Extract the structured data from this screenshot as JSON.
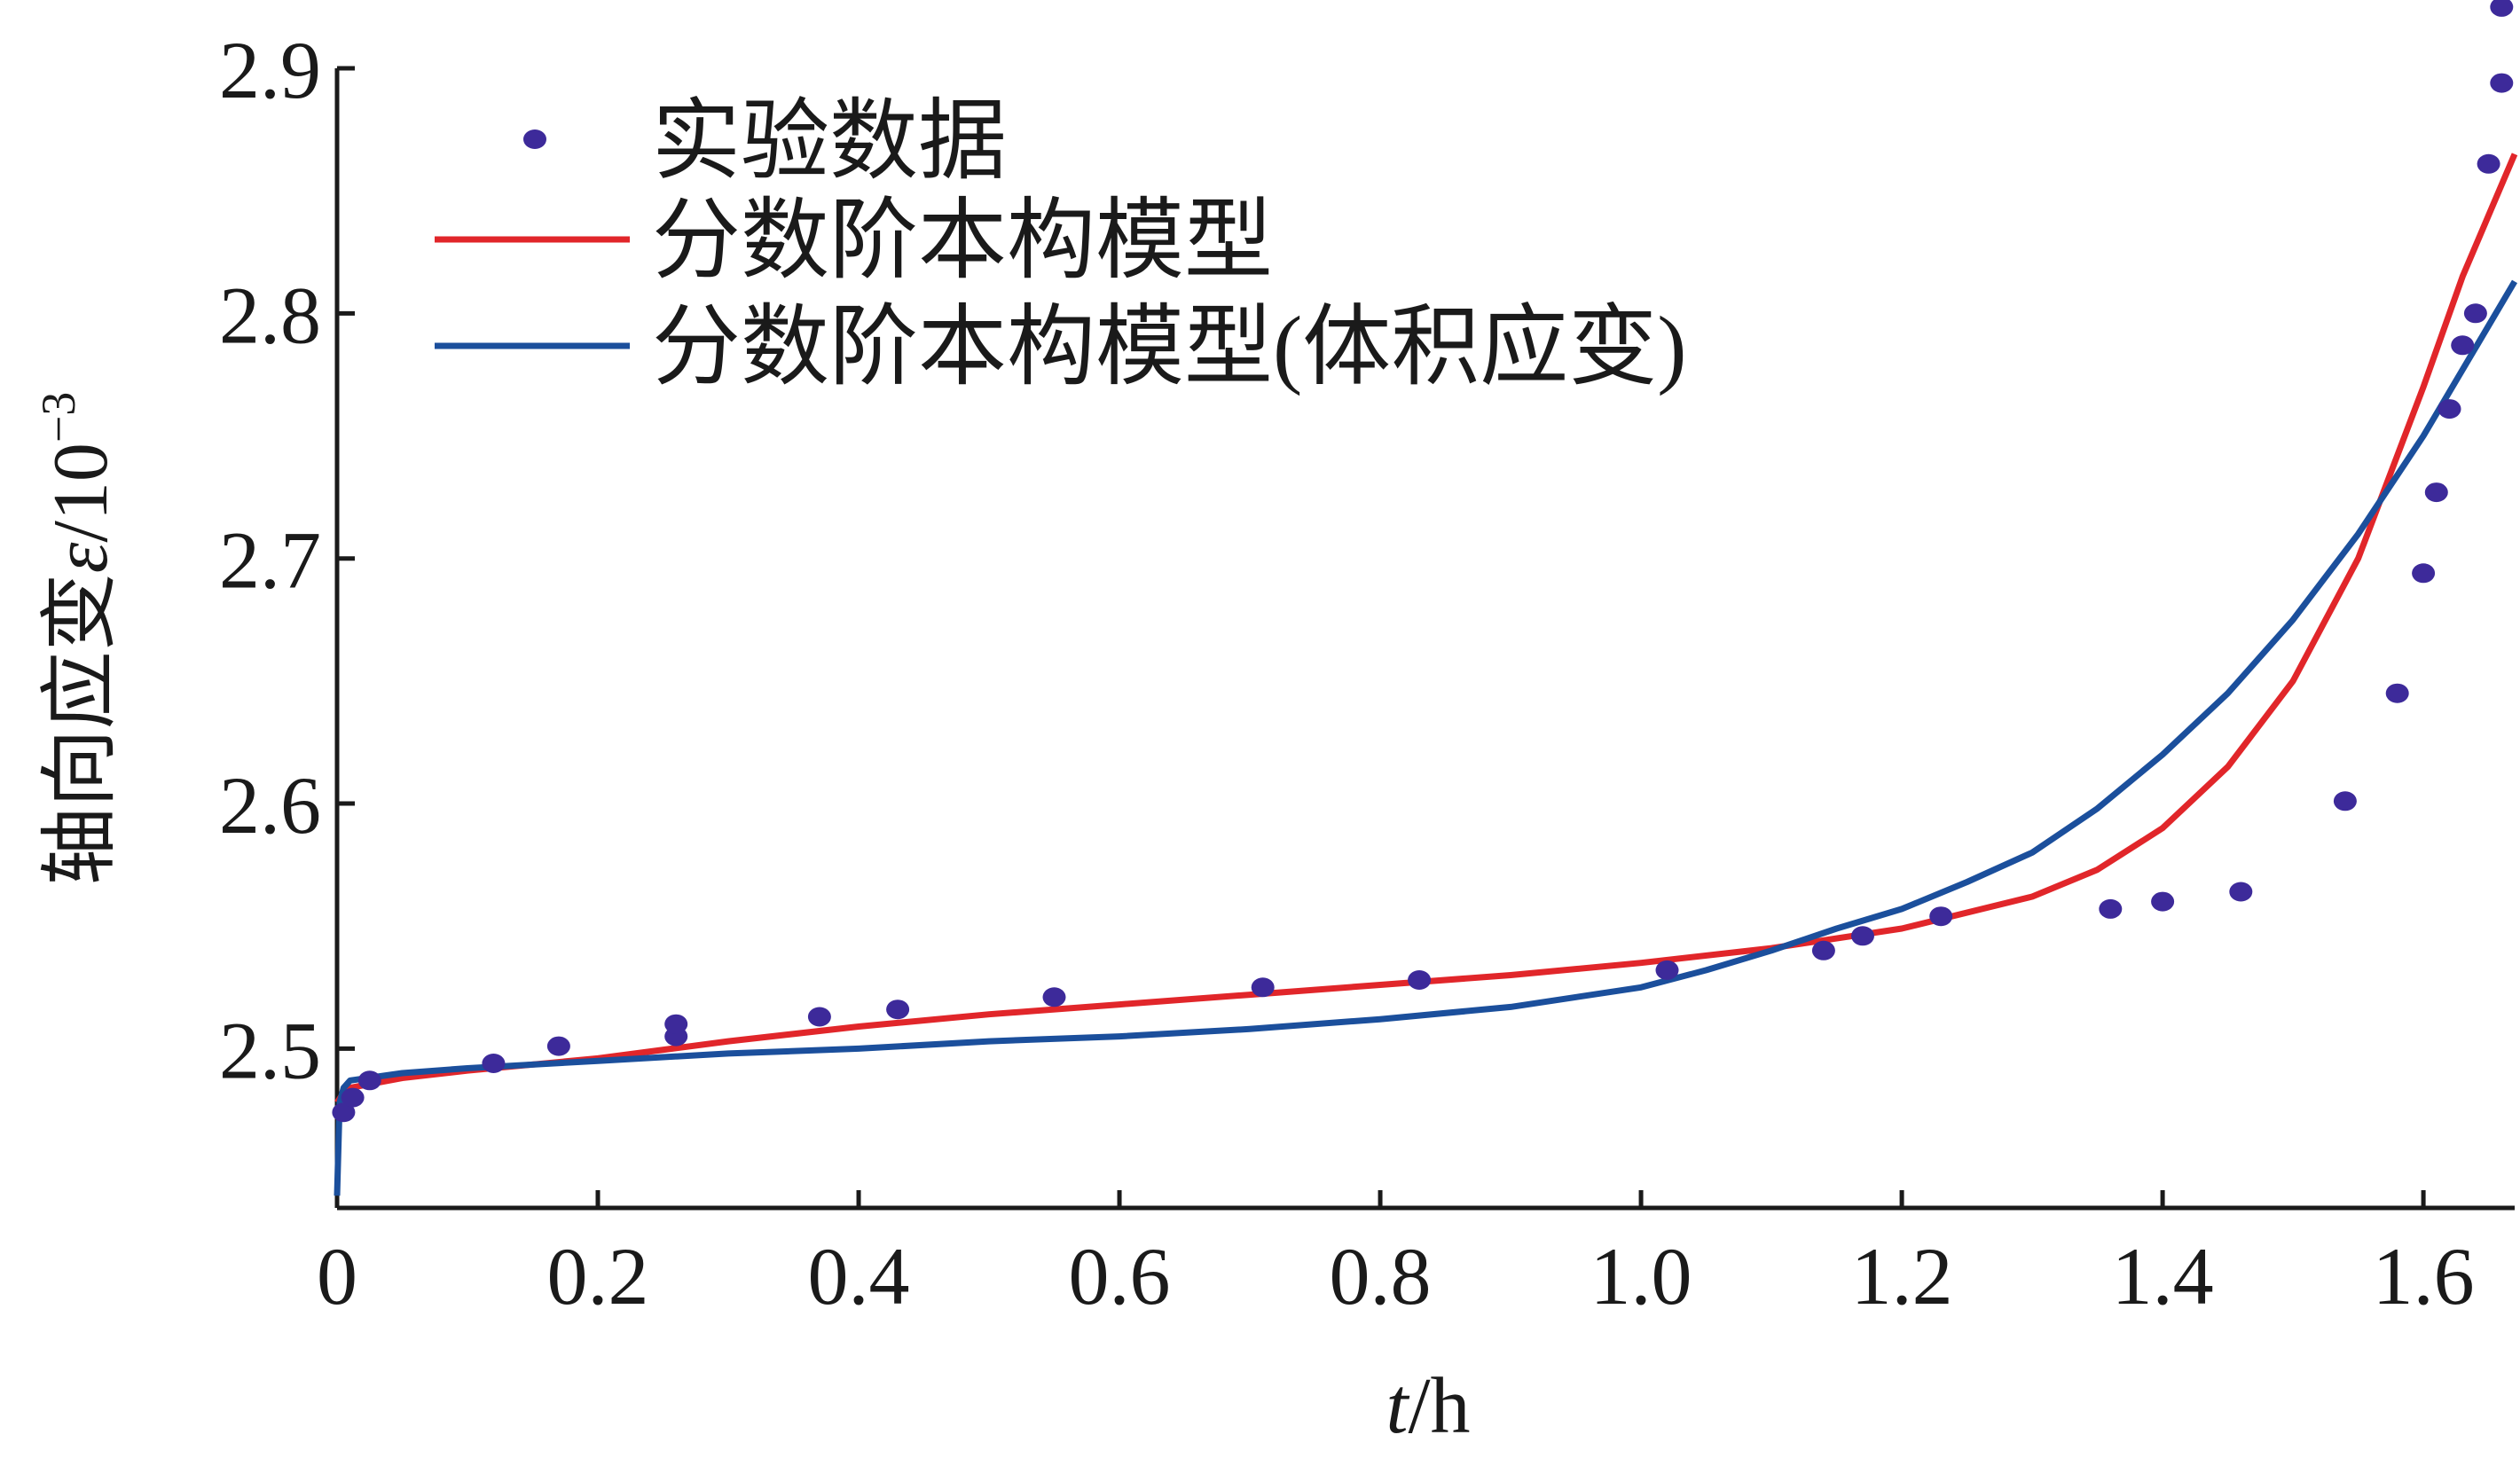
{
  "chart_data": {
    "type": "line",
    "xlabel": "t/h",
    "ylabel": "轴向应变ε/10⁻³",
    "xlim": [
      0,
      1.67
    ],
    "ylim": [
      2.435,
      2.9
    ],
    "x_ticks": [
      "0",
      "0.2",
      "0.4",
      "0.6",
      "0.8",
      "1.0",
      "1.2",
      "1.4",
      "1.6"
    ],
    "y_ticks": [
      "2.5",
      "2.6",
      "2.7",
      "2.8",
      "2.9"
    ],
    "x_tick_values": [
      0,
      0.2,
      0.4,
      0.6,
      0.8,
      1.0,
      1.2,
      1.4,
      1.6
    ],
    "y_tick_values": [
      2.5,
      2.6,
      2.7,
      2.8,
      2.9
    ],
    "grid": false,
    "legend_position": "top-left",
    "series": [
      {
        "name": "实验数据",
        "kind": "scatter",
        "color": "#3d2a9a",
        "x": [
          0.005,
          0.012,
          0.025,
          0.12,
          0.17,
          0.26,
          0.26,
          0.37,
          0.43,
          0.55,
          0.71,
          0.83,
          1.02,
          1.14,
          1.17,
          1.23,
          1.36,
          1.4,
          1.46,
          1.54,
          1.58,
          1.6,
          1.61,
          1.62,
          1.63,
          1.64,
          1.65,
          1.66,
          1.66
        ],
        "y": [
          2.474,
          2.48,
          2.487,
          2.494,
          2.501,
          2.505,
          2.51,
          2.513,
          2.516,
          2.521,
          2.525,
          2.528,
          2.532,
          2.54,
          2.546,
          2.554,
          2.557,
          2.56,
          2.564,
          2.601,
          2.645,
          2.694,
          2.727,
          2.761,
          2.787,
          2.8,
          2.861,
          2.894,
          2.925
        ]
      },
      {
        "name": "分数阶本构模型",
        "kind": "line",
        "color": "#e1262a",
        "x": [
          0,
          0.005,
          0.01,
          0.05,
          0.1,
          0.2,
          0.3,
          0.4,
          0.5,
          0.6,
          0.7,
          0.8,
          0.9,
          1.0,
          1.1,
          1.2,
          1.3,
          1.35,
          1.4,
          1.45,
          1.5,
          1.55,
          1.6,
          1.63,
          1.65,
          1.67
        ],
        "y": [
          2.478,
          2.482,
          2.484,
          2.488,
          2.491,
          2.496,
          2.503,
          2.509,
          2.514,
          2.518,
          2.522,
          2.526,
          2.53,
          2.535,
          2.541,
          2.549,
          2.562,
          2.573,
          2.59,
          2.615,
          2.65,
          2.7,
          2.77,
          2.815,
          2.84,
          2.865
        ]
      },
      {
        "name": "分数阶本构模型(体积应变)",
        "kind": "line",
        "color": "#1b4f9c",
        "x": [
          0,
          0.002,
          0.005,
          0.01,
          0.05,
          0.1,
          0.2,
          0.3,
          0.4,
          0.5,
          0.6,
          0.7,
          0.8,
          0.9,
          1.0,
          1.05,
          1.1,
          1.15,
          1.2,
          1.25,
          1.3,
          1.35,
          1.4,
          1.45,
          1.5,
          1.55,
          1.6,
          1.65,
          1.67
        ],
        "y": [
          2.44,
          2.478,
          2.484,
          2.487,
          2.49,
          2.492,
          2.495,
          2.498,
          2.5,
          2.503,
          2.505,
          2.508,
          2.512,
          2.517,
          2.525,
          2.532,
          2.54,
          2.549,
          2.557,
          2.568,
          2.58,
          2.598,
          2.62,
          2.645,
          2.675,
          2.71,
          2.75,
          2.795,
          2.813
        ]
      }
    ]
  }
}
